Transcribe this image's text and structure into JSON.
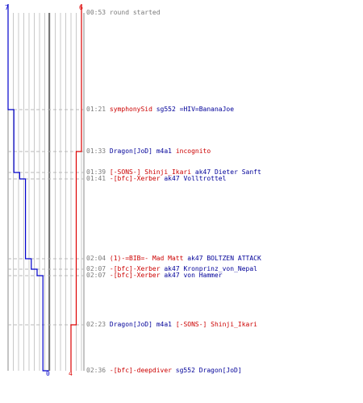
{
  "colors": {
    "blue_team": "#0000cc",
    "red_team": "#dd0000",
    "time_text": "#7a7a7a",
    "blue_text": "#000099",
    "red_text": "#cc0000",
    "grid": "#c8c8c8",
    "center_line": "#555555"
  },
  "axis": {
    "blue_start": "7",
    "red_start": "6",
    "blue_end": "0",
    "red_end": "4"
  },
  "chart_data": {
    "type": "line",
    "x_unit": "time",
    "time_range": [
      "00:53",
      "02:36"
    ],
    "series": [
      {
        "color": "#0000cc",
        "points": [
          {
            "time": "00:53",
            "value": 7
          },
          {
            "time": "01:21",
            "value": 6
          },
          {
            "time": "01:39",
            "value": 5
          },
          {
            "time": "01:41",
            "value": 4
          },
          {
            "time": "02:04",
            "value": 3
          },
          {
            "time": "02:07",
            "value": 2
          },
          {
            "time": "02:07",
            "value": 1
          },
          {
            "time": "02:36",
            "value": 0
          }
        ]
      },
      {
        "color": "#dd0000",
        "points": [
          {
            "time": "00:53",
            "value": 6
          },
          {
            "time": "01:33",
            "value": 5
          },
          {
            "time": "02:23",
            "value": 4
          }
        ]
      }
    ]
  },
  "events": [
    {
      "time": "00:53",
      "parts": [
        {
          "text": "round started",
          "tone": "gray"
        }
      ]
    },
    {
      "time": "01:21",
      "parts": [
        {
          "text": "symphonySid",
          "tone": "red"
        },
        {
          "text": " sg552 ",
          "tone": "blue"
        },
        {
          "text": "=HIV=BananaJoe",
          "tone": "blue"
        }
      ]
    },
    {
      "time": "01:33",
      "parts": [
        {
          "text": "Dragon[JoD]",
          "tone": "blue"
        },
        {
          "text": " m4a1 ",
          "tone": "blue"
        },
        {
          "text": "incognito",
          "tone": "red"
        }
      ]
    },
    {
      "time": "01:39",
      "parts": [
        {
          "text": "[-SONS-] Shinji_Ikari",
          "tone": "red"
        },
        {
          "text": " ak47 ",
          "tone": "blue"
        },
        {
          "text": "Dieter Sanft",
          "tone": "blue"
        }
      ]
    },
    {
      "time": "01:41",
      "parts": [
        {
          "text": "-[bfc]-Xerber",
          "tone": "red"
        },
        {
          "text": " ak47 ",
          "tone": "blue"
        },
        {
          "text": "Volltrottel",
          "tone": "blue"
        }
      ]
    },
    {
      "time": "02:04",
      "parts": [
        {
          "text": "(1)-=BIB=- Mad Matt",
          "tone": "red"
        },
        {
          "text": " ak47 ",
          "tone": "blue"
        },
        {
          "text": "BOLTZEN ATTACK",
          "tone": "blue"
        }
      ]
    },
    {
      "time": "02:07",
      "parts": [
        {
          "text": "-[bfc]-Xerber",
          "tone": "red"
        },
        {
          "text": " ak47 ",
          "tone": "blue"
        },
        {
          "text": "Kronprinz_von_Nepal",
          "tone": "blue"
        }
      ]
    },
    {
      "time": "02:07",
      "parts": [
        {
          "text": "-[bfc]-Xerber",
          "tone": "red"
        },
        {
          "text": " ak47 ",
          "tone": "blue"
        },
        {
          "text": "von Hammer",
          "tone": "blue"
        }
      ]
    },
    {
      "time": "02:23",
      "parts": [
        {
          "text": "Dragon[JoD]",
          "tone": "blue"
        },
        {
          "text": " m4a1 ",
          "tone": "blue"
        },
        {
          "text": "[-SONS-] Shinji_Ikari",
          "tone": "red"
        }
      ]
    },
    {
      "time": "02:36",
      "parts": [
        {
          "text": "-[bfc]-deepdiver",
          "tone": "red"
        },
        {
          "text": " sg552 ",
          "tone": "blue"
        },
        {
          "text": "Dragon[JoD]",
          "tone": "blue"
        }
      ]
    }
  ]
}
